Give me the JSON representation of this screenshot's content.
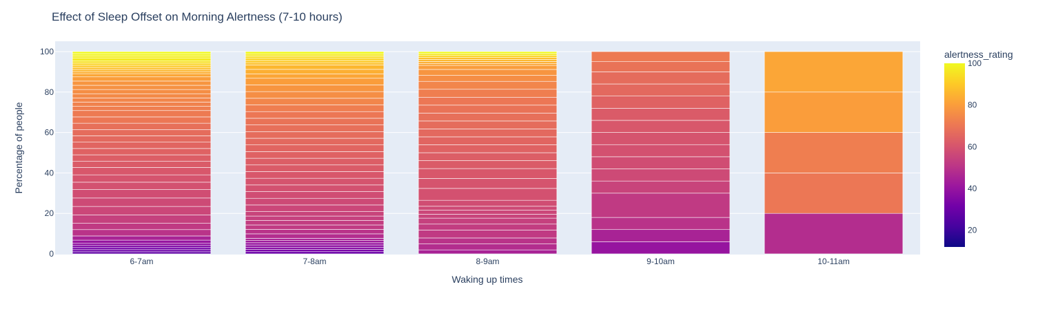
{
  "chart_data": {
    "type": "bar",
    "stacked": true,
    "normalized": "percent",
    "title": "Effect of Sleep Offset on Morning Alertness (7-10 hours)",
    "xlabel": "Waking up times",
    "ylabel": "Percentage of people",
    "categories": [
      "6-7am",
      "7-8am",
      "8-9am",
      "9-10am",
      "10-11am"
    ],
    "ylim": [
      0,
      100
    ],
    "yticks": [
      0,
      20,
      40,
      60,
      80,
      100
    ],
    "grid": true,
    "colorscale": {
      "name": "plasma",
      "title": "alertness_rating",
      "range": [
        12,
        100
      ],
      "ticks": [
        20,
        40,
        60,
        80,
        100
      ]
    },
    "stacks": [
      {
        "category": "6-7am",
        "segments": [
          [
            1,
            28
          ],
          [
            1,
            30
          ],
          [
            1,
            32
          ],
          [
            1,
            34
          ],
          [
            1,
            38
          ],
          [
            1.5,
            40
          ],
          [
            2,
            45
          ],
          [
            3,
            50
          ],
          [
            3,
            52
          ],
          [
            4,
            54
          ],
          [
            4,
            56
          ],
          [
            4,
            57
          ],
          [
            4,
            58
          ],
          [
            3.5,
            59
          ],
          [
            3.5,
            60
          ],
          [
            3.5,
            61
          ],
          [
            3,
            62
          ],
          [
            3,
            63
          ],
          [
            3,
            64
          ],
          [
            3,
            65
          ],
          [
            3,
            66
          ],
          [
            3,
            67
          ],
          [
            3,
            68
          ],
          [
            3,
            70
          ],
          [
            3,
            71
          ],
          [
            2,
            72
          ],
          [
            2,
            73
          ],
          [
            2,
            74
          ],
          [
            2,
            75
          ],
          [
            2,
            76
          ],
          [
            2,
            77
          ],
          [
            2,
            78
          ],
          [
            2,
            80
          ],
          [
            1.5,
            82
          ],
          [
            1,
            84
          ],
          [
            1,
            86
          ],
          [
            1,
            88
          ],
          [
            1,
            90
          ],
          [
            1,
            92
          ],
          [
            1,
            95
          ],
          [
            1.5,
            97
          ],
          [
            1,
            98
          ],
          [
            1,
            99
          ],
          [
            1,
            100
          ]
        ]
      },
      {
        "category": "7-8am",
        "segments": [
          [
            1,
            30
          ],
          [
            1,
            33
          ],
          [
            1,
            36
          ],
          [
            1,
            38
          ],
          [
            1,
            40
          ],
          [
            1,
            42
          ],
          [
            1,
            45
          ],
          [
            2,
            48
          ],
          [
            2,
            50
          ],
          [
            2,
            52
          ],
          [
            2,
            53
          ],
          [
            2,
            54
          ],
          [
            2,
            55
          ],
          [
            3,
            56
          ],
          [
            3,
            57
          ],
          [
            3,
            58
          ],
          [
            3,
            59
          ],
          [
            3,
            60
          ],
          [
            3,
            61
          ],
          [
            3,
            62
          ],
          [
            3,
            63
          ],
          [
            3,
            64
          ],
          [
            3,
            65
          ],
          [
            3,
            66
          ],
          [
            3,
            67
          ],
          [
            3,
            68
          ],
          [
            3,
            69
          ],
          [
            3,
            70
          ],
          [
            3,
            72
          ],
          [
            3,
            74
          ],
          [
            3,
            76
          ],
          [
            3,
            78
          ],
          [
            3,
            80
          ],
          [
            2,
            82
          ],
          [
            2,
            84
          ],
          [
            2,
            86
          ],
          [
            1,
            88
          ],
          [
            1,
            90
          ],
          [
            1,
            92
          ],
          [
            1,
            94
          ],
          [
            1,
            97
          ],
          [
            1,
            100
          ]
        ]
      },
      {
        "category": "8-9am",
        "segments": [
          [
            2,
            45
          ],
          [
            3,
            48
          ],
          [
            3,
            50
          ],
          [
            4,
            52
          ],
          [
            3,
            53
          ],
          [
            3,
            54
          ],
          [
            2,
            55
          ],
          [
            2,
            56
          ],
          [
            2,
            57
          ],
          [
            3,
            58
          ],
          [
            6,
            59
          ],
          [
            5,
            60
          ],
          [
            5,
            61
          ],
          [
            4,
            62
          ],
          [
            4,
            63
          ],
          [
            4,
            64
          ],
          [
            4,
            65
          ],
          [
            4,
            66
          ],
          [
            4,
            67
          ],
          [
            4,
            68
          ],
          [
            4,
            69
          ],
          [
            4,
            70
          ],
          [
            4,
            72
          ],
          [
            4,
            74
          ],
          [
            3,
            76
          ],
          [
            3,
            78
          ],
          [
            2,
            80
          ],
          [
            1,
            82
          ],
          [
            1,
            84
          ],
          [
            1,
            86
          ],
          [
            1,
            88
          ],
          [
            1,
            92
          ],
          [
            1,
            96
          ],
          [
            1,
            100
          ]
        ]
      },
      {
        "category": "9-10am",
        "segments": [
          [
            6,
            40
          ],
          [
            6,
            45
          ],
          [
            6,
            50
          ],
          [
            12,
            52
          ],
          [
            6,
            55
          ],
          [
            6,
            57
          ],
          [
            6,
            58
          ],
          [
            6,
            59
          ],
          [
            6,
            60
          ],
          [
            6,
            61
          ],
          [
            6,
            62
          ],
          [
            6,
            64
          ],
          [
            6,
            66
          ],
          [
            6,
            67
          ],
          [
            5,
            69
          ],
          [
            5,
            71
          ]
        ]
      },
      {
        "category": "10-11am",
        "segments": [
          [
            20,
            48
          ],
          [
            20,
            70
          ],
          [
            20,
            72
          ],
          [
            20,
            80
          ],
          [
            20,
            82
          ]
        ]
      }
    ]
  }
}
